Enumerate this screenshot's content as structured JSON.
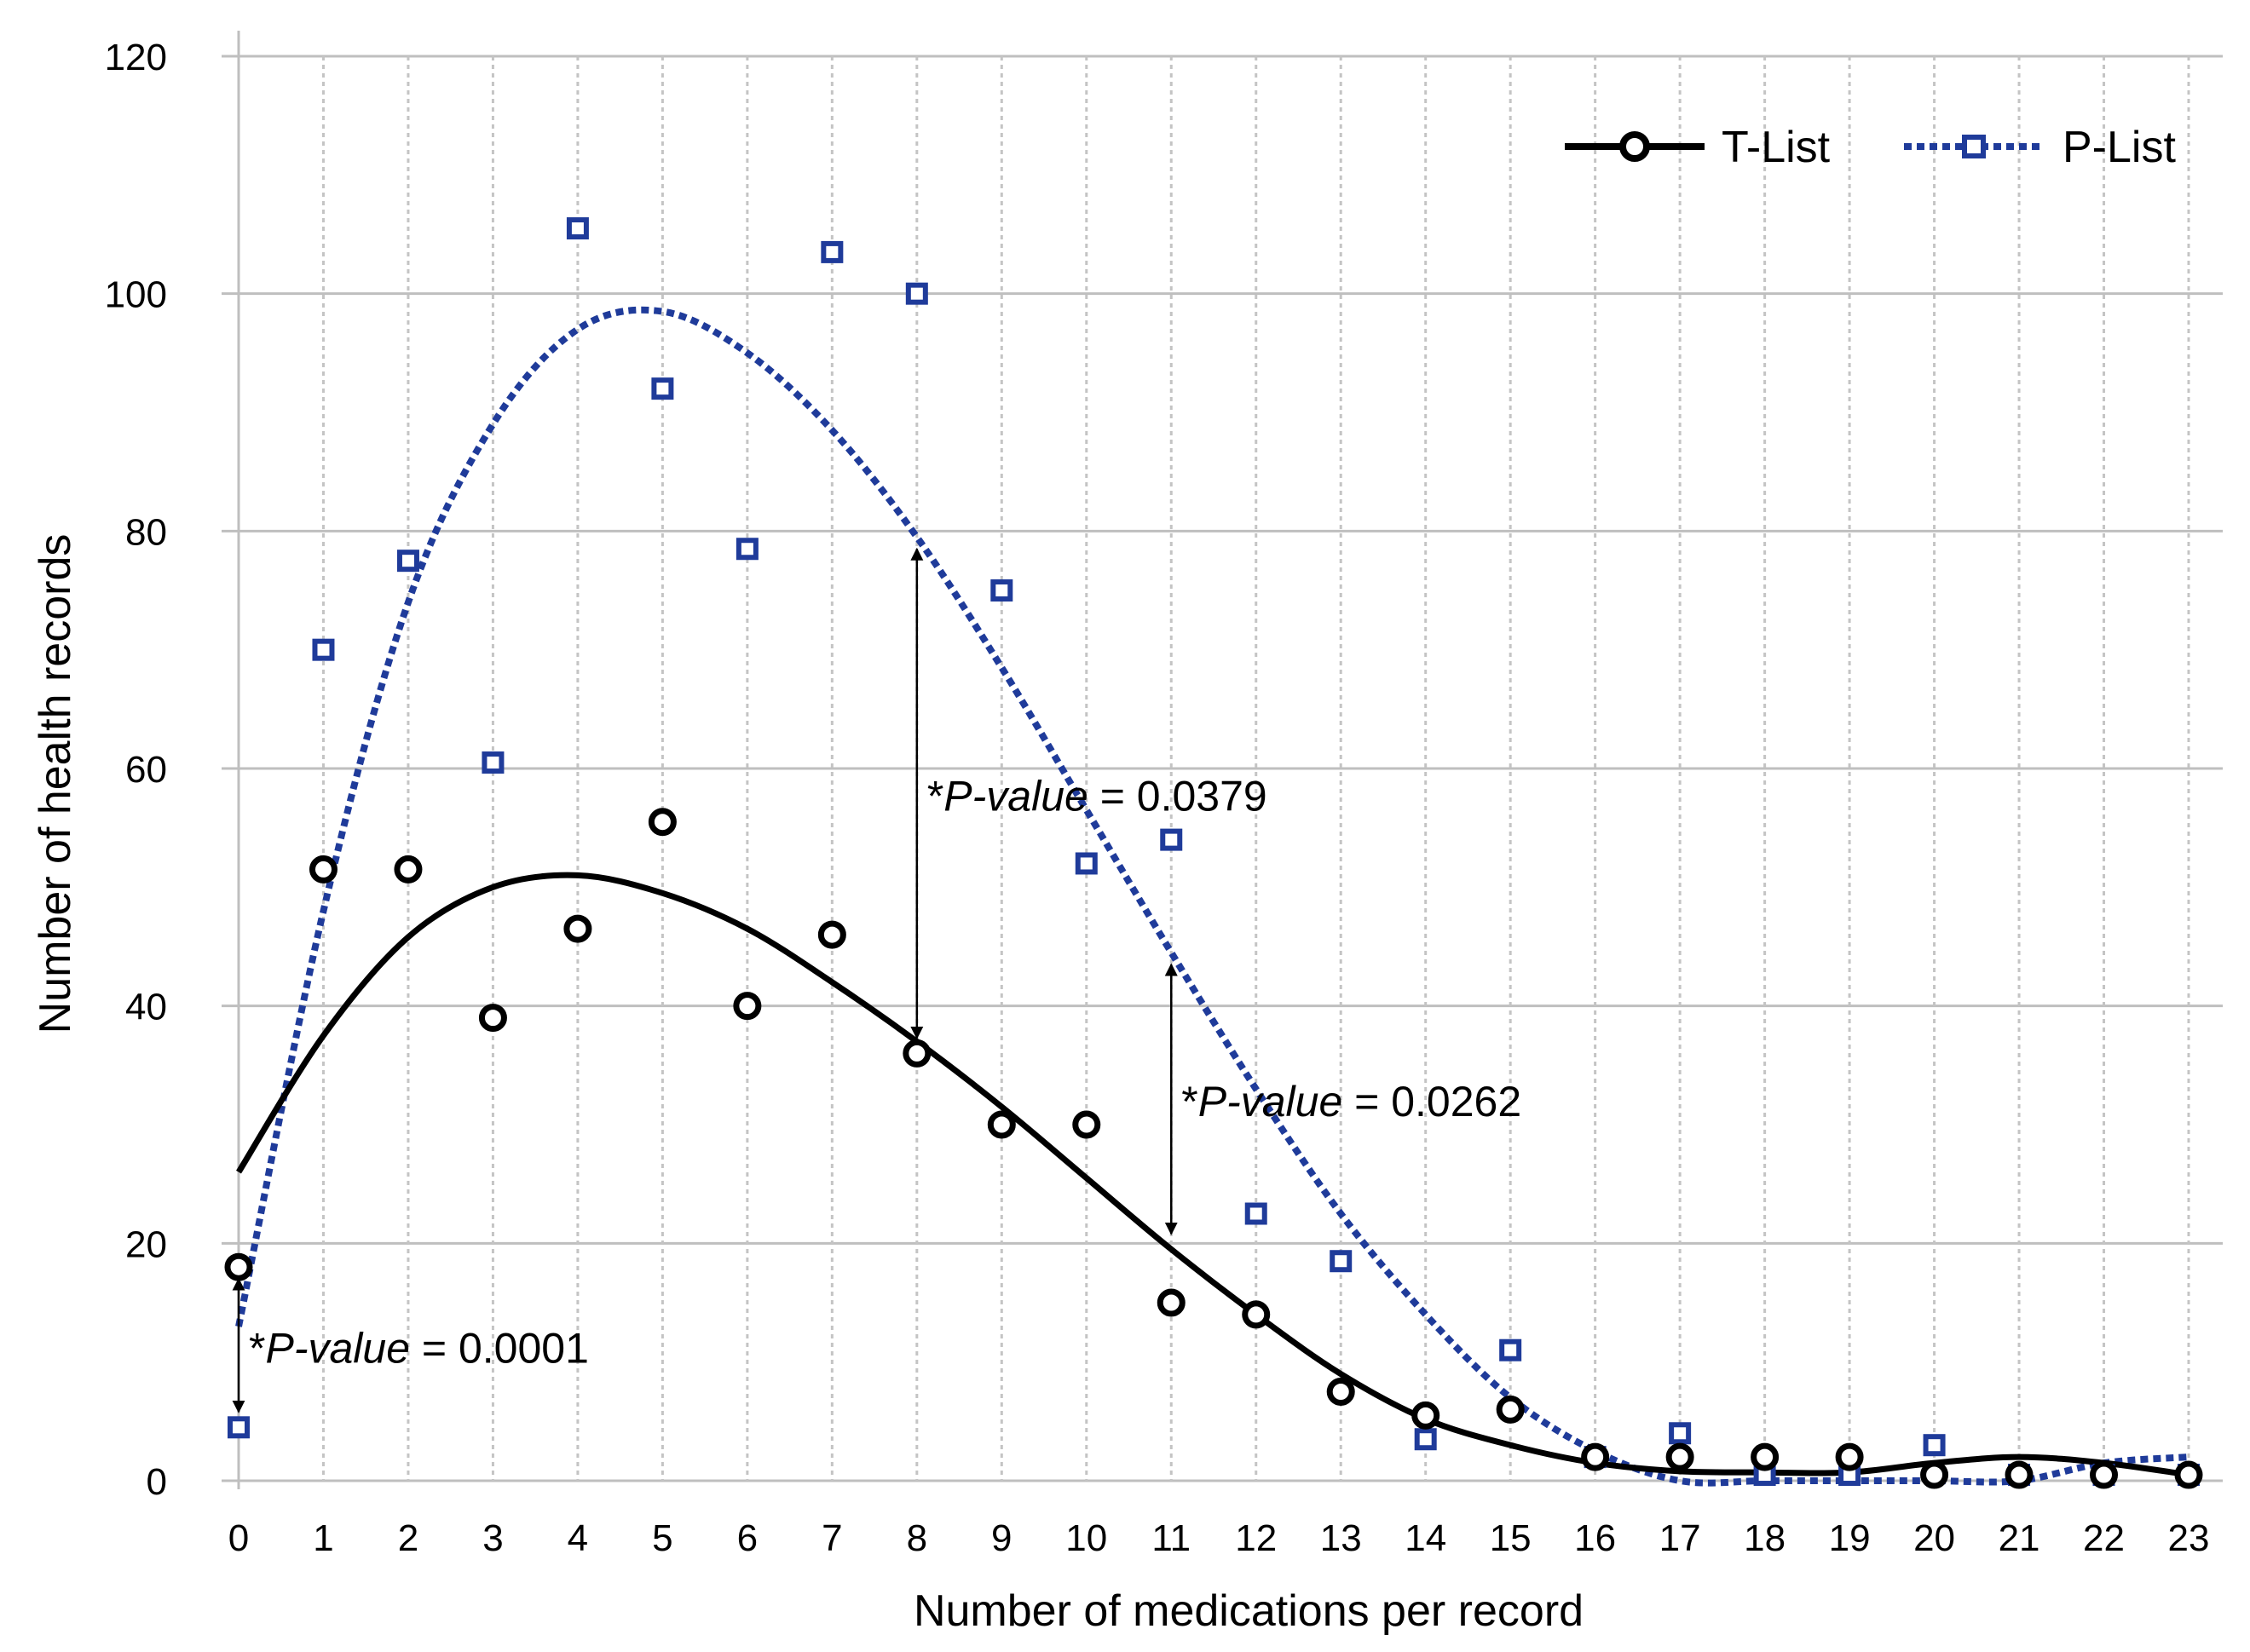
{
  "chart_data": {
    "type": "scatter",
    "title": "",
    "xlabel": "Number of medications per record",
    "ylabel": "Number of health records",
    "xlim": [
      0,
      23
    ],
    "ylim": [
      0,
      120
    ],
    "x_ticks": [
      0,
      1,
      2,
      3,
      4,
      5,
      6,
      7,
      8,
      9,
      10,
      11,
      12,
      13,
      14,
      15,
      16,
      17,
      18,
      19,
      20,
      21,
      22,
      23
    ],
    "y_ticks": [
      0,
      20,
      40,
      60,
      80,
      100,
      120
    ],
    "grid": "horizontal solid, vertical dotted",
    "legend_position": "top-right",
    "series": [
      {
        "name": "T-List",
        "color": "#000000",
        "marker": "circle",
        "trendline": "polynomial, solid",
        "x": [
          0,
          1,
          2,
          3,
          4,
          5,
          6,
          7,
          8,
          9,
          10,
          11,
          12,
          13,
          14,
          15,
          16,
          17,
          18,
          19,
          20,
          21,
          22,
          23
        ],
        "values": [
          18,
          51.5,
          51.5,
          39,
          46.5,
          55.5,
          40,
          46,
          36,
          30,
          30,
          15,
          14,
          7.5,
          5.5,
          6,
          2,
          2,
          2,
          2,
          0.5,
          0.5,
          0.5,
          0.5
        ],
        "trend": [
          26,
          37.5,
          45.8,
          50,
          51,
          49.5,
          46.5,
          42,
          37,
          31.5,
          25.5,
          19.5,
          14,
          9,
          5.2,
          3,
          1.5,
          0.8,
          0.7,
          0.7,
          1.5,
          2,
          1.5,
          0.5
        ]
      },
      {
        "name": "P-List",
        "color": "#1F3B9A",
        "marker": "square",
        "trendline": "polynomial, dotted",
        "x": [
          0,
          1,
          2,
          3,
          4,
          5,
          6,
          7,
          8,
          9,
          10,
          11,
          12,
          13,
          14,
          15,
          16,
          17,
          18,
          19,
          20,
          21,
          22,
          23
        ],
        "values": [
          4.5,
          70,
          77.5,
          60.5,
          105.5,
          92,
          78.5,
          103.5,
          100,
          75,
          52,
          54,
          22.5,
          18.5,
          3.5,
          11,
          2,
          4,
          0.5,
          0.5,
          3,
          0.5,
          0.5,
          0.5
        ],
        "trend": [
          13,
          48,
          74,
          89,
          97,
          98.5,
          95,
          88.5,
          79.5,
          68.5,
          56.5,
          44.5,
          33,
          22.5,
          14,
          7,
          2.5,
          0,
          0,
          0,
          0,
          0,
          1.5,
          2
        ]
      }
    ],
    "annotations": [
      {
        "x": 0,
        "from": 4.5,
        "to": 18,
        "prefix": "*",
        "italic": "P-value",
        "suffix": " = 0.0001"
      },
      {
        "x": 8,
        "from": 36,
        "to": 79.5,
        "prefix": "*",
        "italic": "P-value",
        "suffix": " = 0.0379"
      },
      {
        "x": 11,
        "from": 19.5,
        "to": 44.5,
        "prefix": "*",
        "italic": "P-value",
        "suffix": " = 0.0262"
      }
    ]
  }
}
